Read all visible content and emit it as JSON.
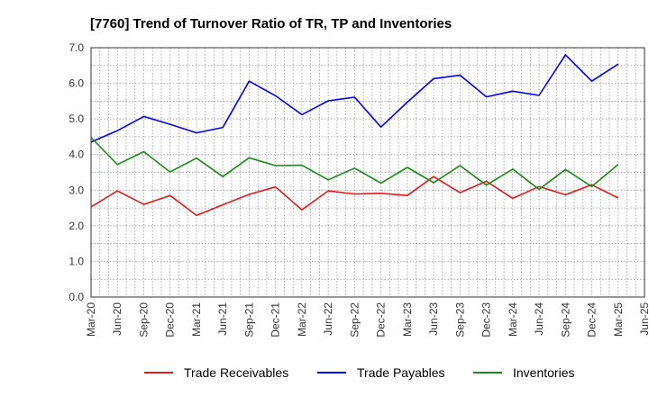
{
  "chart_data": {
    "type": "line",
    "title": "[7760]  Trend of Turnover Ratio of TR, TP and Inventories",
    "xlabel": "",
    "ylabel": "",
    "categories": [
      "Mar-20",
      "Jun-20",
      "Sep-20",
      "Dec-20",
      "Mar-21",
      "Jun-21",
      "Sep-21",
      "Dec-21",
      "Mar-22",
      "Jun-22",
      "Sep-22",
      "Dec-22",
      "Mar-23",
      "Jun-23",
      "Sep-23",
      "Dec-23",
      "Mar-24",
      "Jun-24",
      "Sep-24",
      "Dec-24",
      "Mar-25"
    ],
    "x_tick_labels": [
      "Mar-20",
      "Jun-20",
      "Sep-20",
      "Dec-20",
      "Mar-21",
      "Jun-21",
      "Sep-21",
      "Dec-21",
      "Mar-22",
      "Jun-22",
      "Sep-22",
      "Dec-22",
      "Mar-23",
      "Jun-23",
      "Sep-23",
      "Dec-23",
      "Mar-24",
      "Jun-24",
      "Sep-24",
      "Dec-24",
      "Mar-25",
      "Jun-25"
    ],
    "y_tick_labels": [
      "0.0",
      "1.0",
      "2.0",
      "3.0",
      "4.0",
      "5.0",
      "6.0",
      "7.0"
    ],
    "ylim": [
      0,
      7
    ],
    "grid": true,
    "legend_position": "bottom",
    "series": [
      {
        "name": "Trade Receivables",
        "color": "#e41a1c",
        "values": [
          2.53,
          2.98,
          2.6,
          2.85,
          2.29,
          2.59,
          2.88,
          3.09,
          2.45,
          2.98,
          2.89,
          2.91,
          2.85,
          3.38,
          2.93,
          3.25,
          2.77,
          3.1,
          2.87,
          3.15,
          2.78
        ]
      },
      {
        "name": "Trade Payables",
        "color": "#0000ff",
        "values": [
          4.35,
          4.67,
          5.07,
          4.85,
          4.61,
          4.76,
          6.06,
          5.65,
          5.12,
          5.51,
          5.61,
          4.77,
          5.47,
          6.13,
          6.23,
          5.62,
          5.78,
          5.66,
          6.8,
          6.06,
          6.54
        ]
      },
      {
        "name": "Inventories",
        "color": "#1a8a1a",
        "values": [
          4.48,
          3.72,
          4.08,
          3.51,
          3.9,
          3.38,
          3.91,
          3.69,
          3.7,
          3.29,
          3.62,
          3.2,
          3.64,
          3.21,
          3.69,
          3.14,
          3.59,
          3.02,
          3.58,
          3.1,
          3.72
        ]
      }
    ]
  }
}
